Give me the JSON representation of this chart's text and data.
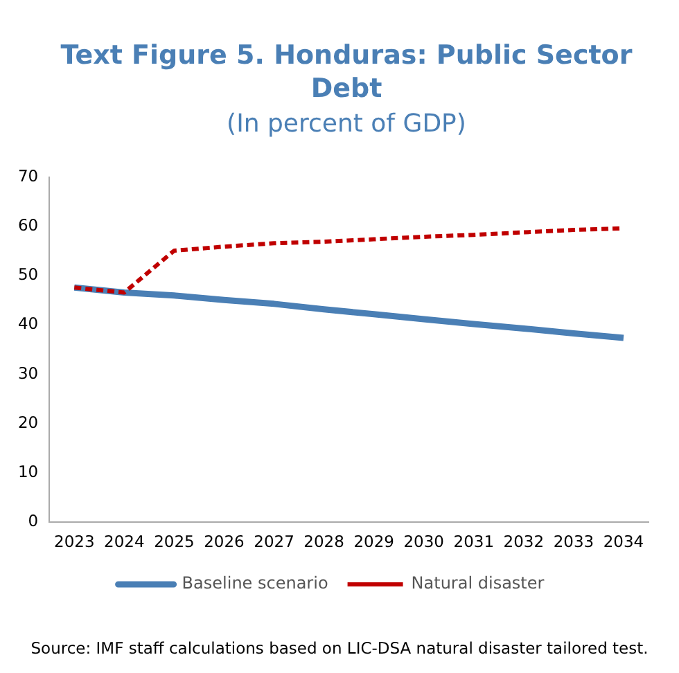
{
  "chart_data": {
    "type": "line",
    "title": "Text Figure 5. Honduras: Public Sector Debt",
    "subtitle": "(In percent of GDP)",
    "categories": [
      "2023",
      "2024",
      "2025",
      "2026",
      "2027",
      "2028",
      "2029",
      "2030",
      "2031",
      "2032",
      "2033",
      "2034"
    ],
    "series": [
      {
        "name": "Baseline scenario",
        "color": "#4a7fb5",
        "line_style": "solid",
        "values": [
          47.6,
          46.6,
          46.0,
          45.1,
          44.3,
          43.2,
          42.2,
          41.2,
          40.2,
          39.3,
          38.3,
          37.4
        ]
      },
      {
        "name": "Natural disaster",
        "color": "#c00000",
        "line_style": "dashed",
        "values": [
          47.6,
          46.6,
          55.1,
          55.9,
          56.6,
          56.9,
          57.4,
          57.9,
          58.3,
          58.8,
          59.3,
          59.6
        ]
      }
    ],
    "ylim": [
      0,
      70
    ],
    "yticks": [
      0,
      10,
      20,
      30,
      40,
      50,
      60,
      70
    ],
    "grid": false,
    "legend": "bottom",
    "marker": "none",
    "annotations": [
      "Source: IMF staff calculations based on LIC-DSA natural disaster tailored test."
    ]
  }
}
